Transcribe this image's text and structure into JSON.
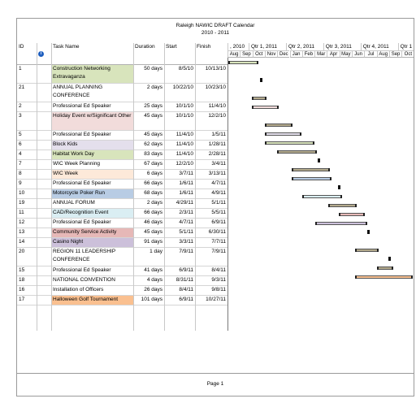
{
  "title_line1": "Raleigh NAWIC DRAFT Calendar",
  "title_line2": "2010 - 2011",
  "columns": {
    "id": "ID",
    "info": "i",
    "task": "Task Name",
    "duration": "Duration",
    "start": "Start",
    "finish": "Finish"
  },
  "quarters": [
    ", 2010",
    "Qtr 1, 2011",
    "Qtr 2, 2011",
    "Qtr 3, 2011",
    "Qtr 4, 2011",
    "Qtr 1"
  ],
  "months": [
    "Aug",
    "Sep",
    "Oct",
    "Nov",
    "Dec",
    "Jan",
    "Feb",
    "Mar",
    "Apr",
    "May",
    "Jun",
    "Jul",
    "Aug",
    "Sep",
    "Oct"
  ],
  "tasks": [
    {
      "id": "1",
      "name": "Construction Networking Extravaganza",
      "duration": "50 days",
      "start": "8/5/10",
      "finish": "10/13/10",
      "color": "#d8e4bc",
      "rows": 2,
      "start_m": 0.13,
      "end_m": 2.42
    },
    {
      "id": "21",
      "name": "ANNUAL PLANNING CONFERENCE",
      "duration": "2 days",
      "start": "10/22/10",
      "finish": "10/23/10",
      "color": "",
      "rows": 2,
      "milestone": true,
      "start_m": 2.7
    },
    {
      "id": "2",
      "name": "Professional Ed Speaker",
      "duration": "25 days",
      "start": "10/1/10",
      "finish": "11/4/10",
      "color": "",
      "rows": 1,
      "start_m": 2.0,
      "end_m": 3.1
    },
    {
      "id": "3",
      "name": "Holiday Event w/Significant Other",
      "duration": "45 days",
      "start": "10/1/10",
      "finish": "12/2/10",
      "color": "#f2dcdb",
      "rows": 2,
      "start_m": 2.0,
      "end_m": 4.05
    },
    {
      "id": "5",
      "name": "Professional Ed Speaker",
      "duration": "45 days",
      "start": "11/4/10",
      "finish": "1/5/11",
      "color": "",
      "rows": 1,
      "start_m": 3.1,
      "end_m": 5.15
    },
    {
      "id": "6",
      "name": "Block Kids",
      "duration": "62 days",
      "start": "11/4/10",
      "finish": "1/28/11",
      "color": "#e4dfec",
      "rows": 1,
      "start_m": 3.1,
      "end_m": 5.9
    },
    {
      "id": "4",
      "name": "Habitat Work Day",
      "duration": "83 days",
      "start": "11/4/10",
      "finish": "2/28/11",
      "color": "#d8e4bc",
      "rows": 1,
      "start_m": 3.1,
      "end_m": 6.9
    },
    {
      "id": "7",
      "name": "WIC Week Planning",
      "duration": "67 days",
      "start": "12/2/10",
      "finish": "3/4/11",
      "color": "",
      "rows": 1,
      "start_m": 4.05,
      "end_m": 7.1
    },
    {
      "id": "8",
      "name": "WIC Week",
      "duration": "6 days",
      "start": "3/7/11",
      "finish": "3/13/11",
      "color": "#fde9d9",
      "rows": 1,
      "milestone": true,
      "start_m": 7.35
    },
    {
      "id": "9",
      "name": "Professional Ed Speaker",
      "duration": "66 days",
      "start": "1/6/11",
      "finish": "4/7/11",
      "color": "",
      "rows": 1,
      "start_m": 5.2,
      "end_m": 8.2
    },
    {
      "id": "10",
      "name": "Motorcycle Poker Run",
      "duration": "68 days",
      "start": "1/6/11",
      "finish": "4/9/11",
      "color": "#b8cce4",
      "rows": 1,
      "start_m": 5.2,
      "end_m": 8.27
    },
    {
      "id": "19",
      "name": "ANNUAL FORUM",
      "duration": "2 days",
      "start": "4/29/11",
      "finish": "5/1/11",
      "color": "",
      "rows": 1,
      "milestone": true,
      "start_m": 8.95
    },
    {
      "id": "11",
      "name": "CAD/Recognition Event",
      "duration": "66 days",
      "start": "2/3/11",
      "finish": "5/5/11",
      "color": "#daeef3",
      "rows": 1,
      "start_m": 6.1,
      "end_m": 9.15
    },
    {
      "id": "12",
      "name": "Professional Ed Speaker",
      "duration": "46 days",
      "start": "4/7/11",
      "finish": "6/9/11",
      "color": "",
      "rows": 1,
      "start_m": 8.2,
      "end_m": 10.3
    },
    {
      "id": "13",
      "name": "Community Service Activity",
      "duration": "45 days",
      "start": "5/1/11",
      "finish": "6/30/11",
      "color": "#e6b8b7",
      "rows": 1,
      "start_m": 9.0,
      "end_m": 11.0
    },
    {
      "id": "14",
      "name": "Casino Night",
      "duration": "91 days",
      "start": "3/3/11",
      "finish": "7/7/11",
      "color": "#ccc0da",
      "rows": 1,
      "start_m": 7.1,
      "end_m": 11.2
    },
    {
      "id": "20",
      "name": "REGION 11 LEADERSHIP CONFERENCE",
      "duration": "1 day",
      "start": "7/9/11",
      "finish": "7/9/11",
      "color": "",
      "rows": 2,
      "milestone": true,
      "start_m": 11.28
    },
    {
      "id": "15",
      "name": "Professional Ed Speaker",
      "duration": "41 days",
      "start": "6/9/11",
      "finish": "8/4/11",
      "color": "",
      "rows": 1,
      "start_m": 10.3,
      "end_m": 12.1
    },
    {
      "id": "18",
      "name": "NATIONAL CONVENTION",
      "duration": "4 days",
      "start": "8/31/11",
      "finish": "9/3/11",
      "color": "",
      "rows": 1,
      "milestone": true,
      "start_m": 13.0
    },
    {
      "id": "16",
      "name": "Installation of Officers",
      "duration": "26 days",
      "start": "8/4/11",
      "finish": "9/8/11",
      "color": "",
      "rows": 1,
      "start_m": 12.1,
      "end_m": 13.25
    },
    {
      "id": "17",
      "name": "Halloween Golf Tournament",
      "duration": "101 days",
      "start": "6/9/11",
      "finish": "10/27/11",
      "color": "#fac090",
      "rows": 1,
      "start_m": 10.3,
      "end_m": 14.85
    }
  ],
  "bar_default_color": "#b2a98c",
  "footer": "Page 1"
}
